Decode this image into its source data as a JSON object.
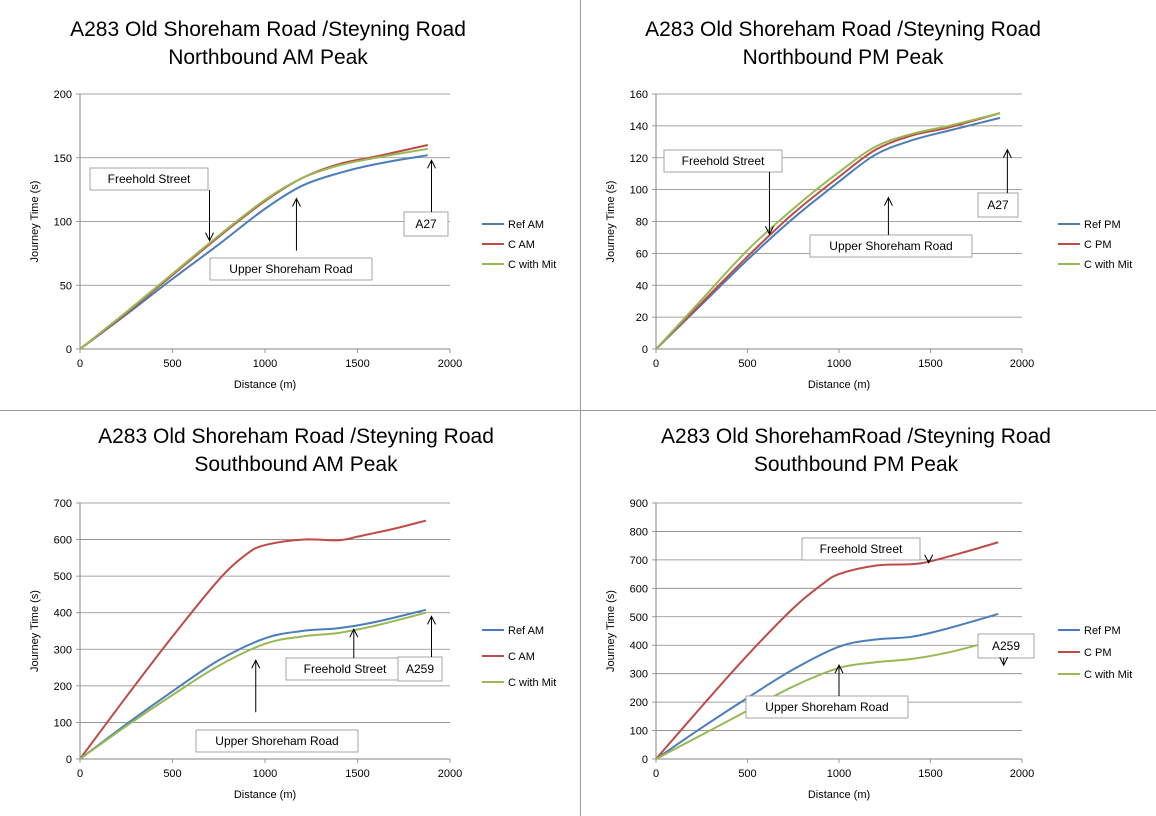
{
  "chart_data": [
    {
      "type": "line",
      "title": "A283 Old Shoreham Road /Steyning Road",
      "subtitle": "Northbound AM Peak",
      "xlabel": "Distance (m)",
      "ylabel": "Journey Time (s)",
      "xlim": [
        0,
        2000
      ],
      "ylim": [
        0,
        200
      ],
      "xticks": [
        "0",
        "500",
        "1000",
        "1500",
        "2000"
      ],
      "yticks": [
        "0",
        "50",
        "100",
        "150",
        "200"
      ],
      "grid": true,
      "legend": "right",
      "series": [
        {
          "name": "Ref AM",
          "color": "#4a7ebb",
          "x": [
            0,
            250,
            500,
            750,
            1000,
            1200,
            1400,
            1600,
            1880
          ],
          "y": [
            0,
            27,
            55,
            82,
            110,
            128,
            138,
            145,
            152
          ]
        },
        {
          "name": "C AM",
          "color": "#be4b48",
          "x": [
            0,
            250,
            500,
            750,
            1000,
            1200,
            1400,
            1600,
            1880
          ],
          "y": [
            0,
            28,
            58,
            88,
            116,
            134,
            145,
            151,
            160
          ]
        },
        {
          "name": "C with Mit",
          "color": "#98b954",
          "x": [
            0,
            250,
            500,
            750,
            1000,
            1200,
            1400,
            1600,
            1880
          ],
          "y": [
            0,
            29,
            59,
            89,
            117,
            134,
            144,
            150,
            157
          ]
        }
      ],
      "annotations": [
        {
          "text": "Freehold Street",
          "arrow_to": [
            700,
            85
          ]
        },
        {
          "text": "Upper Shoreham Road",
          "arrow_to": [
            1170,
            118
          ]
        },
        {
          "text": "A27",
          "arrow_to": [
            1900,
            148
          ]
        }
      ]
    },
    {
      "type": "line",
      "title": "A283 Old Shoreham Road /Steyning Road",
      "subtitle": "Northbound PM Peak",
      "xlabel": "Distance (m)",
      "ylabel": "Journey Time (s)",
      "xlim": [
        0,
        2000
      ],
      "ylim": [
        0,
        160
      ],
      "xticks": [
        "0",
        "500",
        "1000",
        "1500",
        "2000"
      ],
      "yticks": [
        "0",
        "20",
        "40",
        "60",
        "80",
        "100",
        "120",
        "140",
        "160"
      ],
      "grid": true,
      "legend": "right",
      "series": [
        {
          "name": "Ref PM",
          "color": "#4a7ebb",
          "x": [
            0,
            250,
            500,
            750,
            1000,
            1200,
            1400,
            1600,
            1880
          ],
          "y": [
            0,
            28,
            56,
            82,
            105,
            122,
            131,
            137,
            145
          ]
        },
        {
          "name": "C PM",
          "color": "#be4b48",
          "x": [
            0,
            250,
            500,
            750,
            1000,
            1200,
            1400,
            1600,
            1880
          ],
          "y": [
            0,
            29,
            58,
            85,
            108,
            125,
            134,
            139,
            148
          ]
        },
        {
          "name": "C with Mit",
          "color": "#98b954",
          "x": [
            0,
            250,
            500,
            750,
            1000,
            1200,
            1400,
            1600,
            1880
          ],
          "y": [
            0,
            31,
            62,
            88,
            111,
            127,
            135,
            140,
            148
          ]
        }
      ],
      "annotations": [
        {
          "text": "Freehold Street",
          "arrow_to": [
            620,
            72
          ]
        },
        {
          "text": "Upper Shoreham Road",
          "arrow_to": [
            1270,
            95
          ]
        },
        {
          "text": "A27",
          "arrow_to": [
            1920,
            125
          ]
        }
      ]
    },
    {
      "type": "line",
      "title": "A283 Old Shoreham Road /Steyning Road",
      "subtitle": "Southbound AM Peak",
      "xlabel": "Distance (m)",
      "ylabel": "Journey Time (s)",
      "xlim": [
        0,
        2000
      ],
      "ylim": [
        0,
        700
      ],
      "xticks": [
        "0",
        "500",
        "1000",
        "1500",
        "2000"
      ],
      "yticks": [
        "0",
        "100",
        "200",
        "300",
        "400",
        "500",
        "600",
        "700"
      ],
      "grid": true,
      "legend": "right",
      "series": [
        {
          "name": "Ref AM",
          "color": "#4a7ebb",
          "x": [
            0,
            250,
            500,
            750,
            1000,
            1200,
            1400,
            1600,
            1870
          ],
          "y": [
            0,
            95,
            185,
            270,
            330,
            350,
            358,
            375,
            408
          ]
        },
        {
          "name": "C AM",
          "color": "#be4b48",
          "x": [
            0,
            250,
            500,
            750,
            900,
            1000,
            1200,
            1400,
            1500,
            1700,
            1870
          ],
          "y": [
            0,
            170,
            335,
            490,
            560,
            585,
            600,
            598,
            608,
            630,
            652
          ]
        },
        {
          "name": "C with Mit",
          "color": "#98b954",
          "x": [
            0,
            250,
            500,
            750,
            1000,
            1200,
            1400,
            1600,
            1870
          ],
          "y": [
            0,
            90,
            175,
            255,
            315,
            335,
            345,
            365,
            400
          ]
        }
      ],
      "annotations": [
        {
          "text": "Freehold Street",
          "arrow_to": [
            1480,
            355
          ]
        },
        {
          "text": "Upper Shoreham Road",
          "arrow_to": [
            950,
            270
          ]
        },
        {
          "text": "A259",
          "arrow_to": [
            1900,
            390
          ]
        }
      ]
    },
    {
      "type": "line",
      "title": "A283 Old ShorehamRoad /Steyning Road",
      "subtitle": "Southbound PM Peak",
      "xlabel": "Distance (m)",
      "ylabel": "Journey Time (s)",
      "xlim": [
        0,
        2000
      ],
      "ylim": [
        0,
        900
      ],
      "xticks": [
        "0",
        "500",
        "1000",
        "1500",
        "2000"
      ],
      "yticks": [
        "0",
        "100",
        "200",
        "300",
        "400",
        "500",
        "600",
        "700",
        "800",
        "900"
      ],
      "grid": true,
      "legend": "right",
      "series": [
        {
          "name": "Ref PM",
          "color": "#4a7ebb",
          "x": [
            0,
            250,
            500,
            750,
            1000,
            1200,
            1400,
            1600,
            1870
          ],
          "y": [
            0,
            110,
            215,
            315,
            395,
            420,
            430,
            460,
            510
          ]
        },
        {
          "name": "C PM",
          "color": "#be4b48",
          "x": [
            0,
            250,
            500,
            750,
            900,
            1000,
            1200,
            1400,
            1500,
            1700,
            1870
          ],
          "y": [
            0,
            185,
            365,
            530,
            610,
            650,
            680,
            685,
            695,
            730,
            762
          ]
        },
        {
          "name": "C with Mit",
          "color": "#98b954",
          "x": [
            0,
            250,
            500,
            750,
            1000,
            1200,
            1400,
            1600,
            1870
          ],
          "y": [
            0,
            85,
            170,
            255,
            320,
            340,
            352,
            375,
            420
          ]
        }
      ],
      "annotations": [
        {
          "text": "Freehold Street",
          "arrow_to": [
            1490,
            690
          ]
        },
        {
          "text": "Upper Shoreham Road",
          "arrow_to": [
            1000,
            330
          ]
        },
        {
          "text": "A259",
          "arrow_to": [
            1900,
            330
          ]
        }
      ]
    }
  ]
}
